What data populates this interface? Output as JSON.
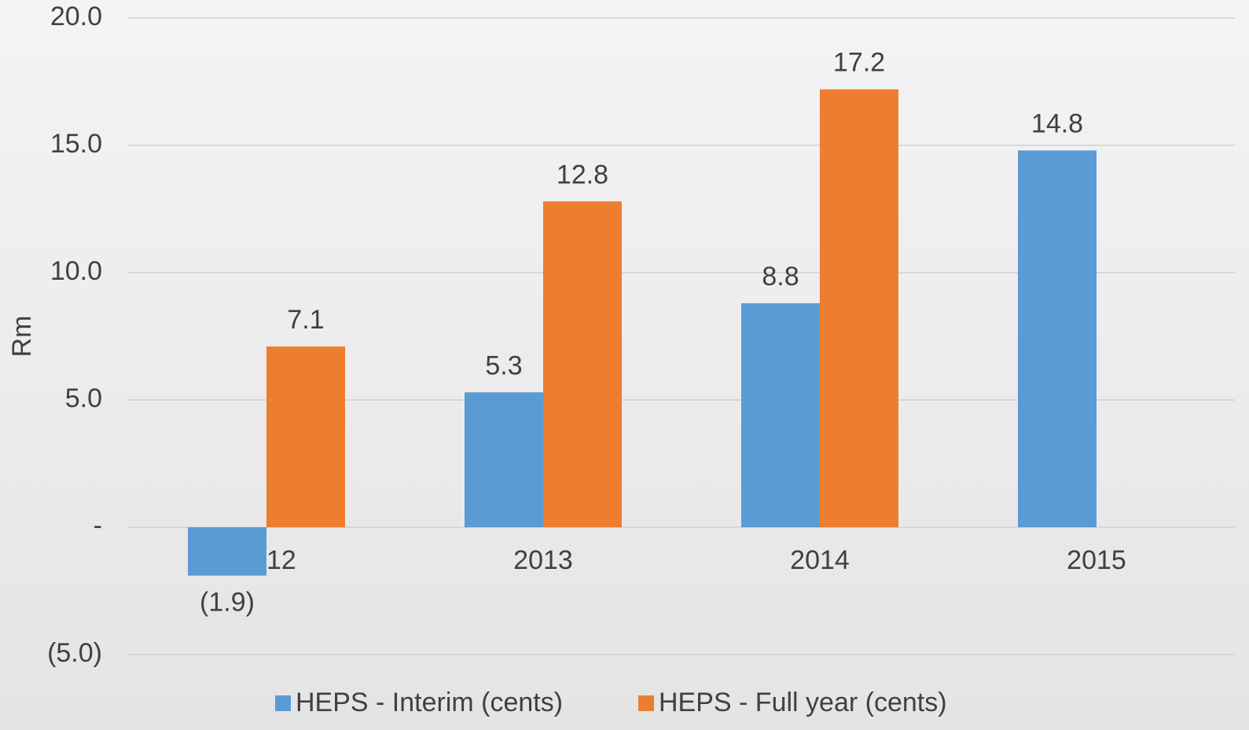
{
  "chart_data": {
    "type": "bar",
    "y_label": "Rm",
    "categories": [
      "2012",
      "2013",
      "2014",
      "2015"
    ],
    "series": [
      {
        "name": "HEPS - Interim (cents)",
        "color": "#5b9bd5",
        "values": [
          -1.9,
          5.3,
          8.8,
          14.8
        ],
        "value_labels": [
          "(1.9)",
          "5.3",
          "8.8",
          "14.8"
        ]
      },
      {
        "name": "HEPS - Full year (cents)",
        "color": "#ed7d31",
        "values": [
          7.1,
          12.8,
          17.2,
          null
        ]
      }
    ],
    "ylim": [
      -5,
      20
    ],
    "yticks": [
      {
        "value": -5,
        "label": "(5.0)"
      },
      {
        "value": 0,
        "label": "-"
      },
      {
        "value": 5,
        "label": "5.0"
      },
      {
        "value": 10,
        "label": "10.0"
      },
      {
        "value": 15,
        "label": "15.0"
      },
      {
        "value": 20,
        "label": "20.0"
      }
    ],
    "grid": true,
    "legend": "bottom"
  }
}
